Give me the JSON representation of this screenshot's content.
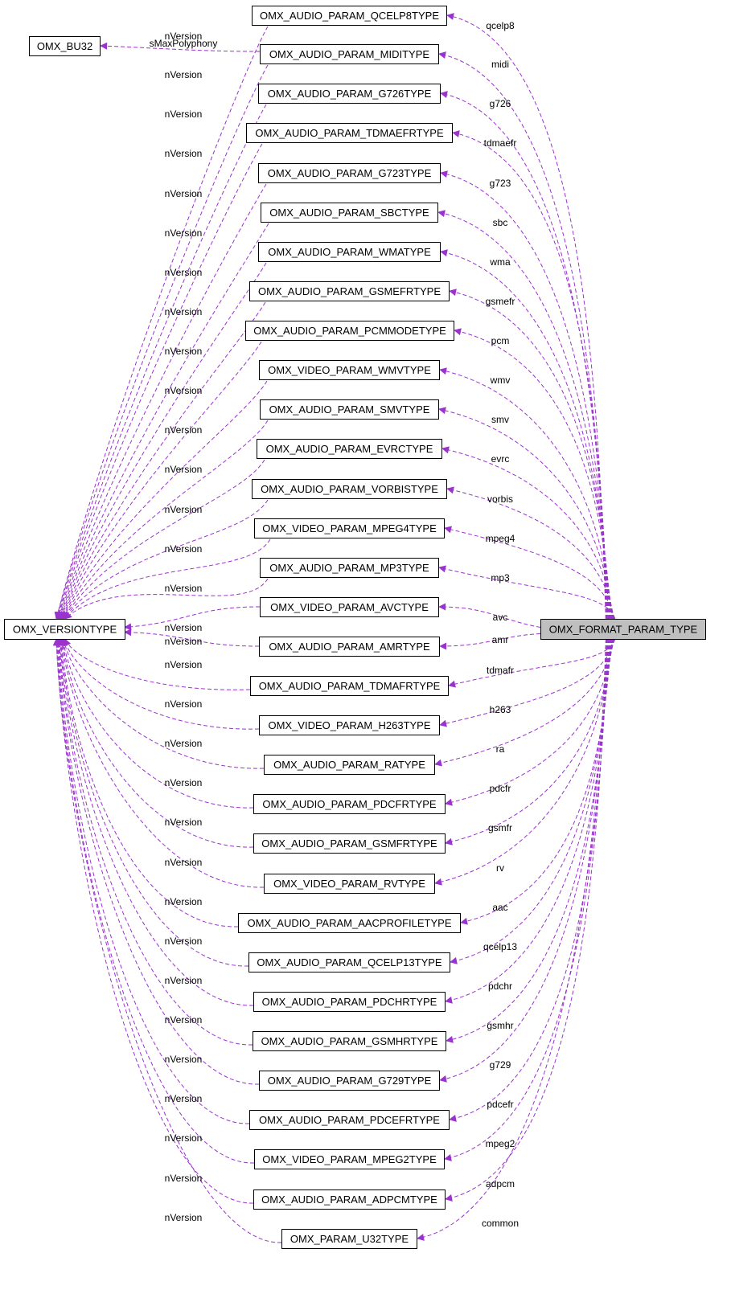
{
  "diagram": {
    "kind": "collaboration-graph",
    "edge_color": "#9a32cd",
    "highlight_fill": "#bfbfbf",
    "nodes": [
      {
        "id": "format",
        "label": "OMX_FORMAT_PARAM_TYPE",
        "highlight": true
      },
      {
        "id": "version",
        "label": "OMX_VERSIONTYPE"
      },
      {
        "id": "bu32",
        "label": "OMX_BU32"
      },
      {
        "id": "qcelp8",
        "label": "OMX_AUDIO_PARAM_QCELP8TYPE"
      },
      {
        "id": "midi",
        "label": "OMX_AUDIO_PARAM_MIDITYPE"
      },
      {
        "id": "g726",
        "label": "OMX_AUDIO_PARAM_G726TYPE"
      },
      {
        "id": "tdmaefr",
        "label": "OMX_AUDIO_PARAM_TDMAEFRTYPE"
      },
      {
        "id": "g723",
        "label": "OMX_AUDIO_PARAM_G723TYPE"
      },
      {
        "id": "sbc",
        "label": "OMX_AUDIO_PARAM_SBCTYPE"
      },
      {
        "id": "wma",
        "label": "OMX_AUDIO_PARAM_WMATYPE"
      },
      {
        "id": "gsmefr",
        "label": "OMX_AUDIO_PARAM_GSMEFRTYPE"
      },
      {
        "id": "pcm",
        "label": "OMX_AUDIO_PARAM_PCMMODETYPE"
      },
      {
        "id": "wmv",
        "label": "OMX_VIDEO_PARAM_WMVTYPE"
      },
      {
        "id": "smv",
        "label": "OMX_AUDIO_PARAM_SMVTYPE"
      },
      {
        "id": "evrc",
        "label": "OMX_AUDIO_PARAM_EVRCTYPE"
      },
      {
        "id": "vorbis",
        "label": "OMX_AUDIO_PARAM_VORBISTYPE"
      },
      {
        "id": "mpeg4",
        "label": "OMX_VIDEO_PARAM_MPEG4TYPE"
      },
      {
        "id": "mp3",
        "label": "OMX_AUDIO_PARAM_MP3TYPE"
      },
      {
        "id": "avc",
        "label": "OMX_VIDEO_PARAM_AVCTYPE"
      },
      {
        "id": "amr",
        "label": "OMX_AUDIO_PARAM_AMRTYPE"
      },
      {
        "id": "tdmafr",
        "label": "OMX_AUDIO_PARAM_TDMAFRTYPE"
      },
      {
        "id": "h263",
        "label": "OMX_VIDEO_PARAM_H263TYPE"
      },
      {
        "id": "ra",
        "label": "OMX_AUDIO_PARAM_RATYPE"
      },
      {
        "id": "pdcfr",
        "label": "OMX_AUDIO_PARAM_PDCFRTYPE"
      },
      {
        "id": "gsmfr",
        "label": "OMX_AUDIO_PARAM_GSMFRTYPE"
      },
      {
        "id": "rv",
        "label": "OMX_VIDEO_PARAM_RVTYPE"
      },
      {
        "id": "aac",
        "label": "OMX_AUDIO_PARAM_AACPROFILETYPE"
      },
      {
        "id": "qcelp13",
        "label": "OMX_AUDIO_PARAM_QCELP13TYPE"
      },
      {
        "id": "pdchr",
        "label": "OMX_AUDIO_PARAM_PDCHRTYPE"
      },
      {
        "id": "gsmhr",
        "label": "OMX_AUDIO_PARAM_GSMHRTYPE"
      },
      {
        "id": "g729",
        "label": "OMX_AUDIO_PARAM_G729TYPE"
      },
      {
        "id": "pdcefr",
        "label": "OMX_AUDIO_PARAM_PDCEFRTYPE"
      },
      {
        "id": "mpeg2",
        "label": "OMX_VIDEO_PARAM_MPEG2TYPE"
      },
      {
        "id": "adpcm",
        "label": "OMX_AUDIO_PARAM_ADPCMTYPE"
      },
      {
        "id": "u32",
        "label": "OMX_PARAM_U32TYPE"
      }
    ],
    "member_edges": [
      {
        "to": "qcelp8",
        "label": "qcelp8"
      },
      {
        "to": "midi",
        "label": "midi"
      },
      {
        "to": "g726",
        "label": "g726"
      },
      {
        "to": "tdmaefr",
        "label": "tdmaefr"
      },
      {
        "to": "g723",
        "label": "g723"
      },
      {
        "to": "sbc",
        "label": "sbc"
      },
      {
        "to": "wma",
        "label": "wma"
      },
      {
        "to": "gsmefr",
        "label": "gsmefr"
      },
      {
        "to": "pcm",
        "label": "pcm"
      },
      {
        "to": "wmv",
        "label": "wmv"
      },
      {
        "to": "smv",
        "label": "smv"
      },
      {
        "to": "evrc",
        "label": "evrc"
      },
      {
        "to": "vorbis",
        "label": "vorbis"
      },
      {
        "to": "mpeg4",
        "label": "mpeg4"
      },
      {
        "to": "mp3",
        "label": "mp3"
      },
      {
        "to": "avc",
        "label": "avc"
      },
      {
        "to": "amr",
        "label": "amr"
      },
      {
        "to": "tdmafr",
        "label": "tdmafr"
      },
      {
        "to": "h263",
        "label": "h263"
      },
      {
        "to": "ra",
        "label": "ra"
      },
      {
        "to": "pdcfr",
        "label": "pdcfr"
      },
      {
        "to": "gsmfr",
        "label": "gsmfr"
      },
      {
        "to": "rv",
        "label": "rv"
      },
      {
        "to": "aac",
        "label": "aac"
      },
      {
        "to": "qcelp13",
        "label": "qcelp13"
      },
      {
        "to": "pdchr",
        "label": "pdchr"
      },
      {
        "to": "gsmhr",
        "label": "gsmhr"
      },
      {
        "to": "g729",
        "label": "g729"
      },
      {
        "to": "pdcefr",
        "label": "pdcefr"
      },
      {
        "to": "mpeg2",
        "label": "mpeg2"
      },
      {
        "to": "adpcm",
        "label": "adpcm"
      },
      {
        "to": "u32",
        "label": "common"
      }
    ],
    "version_edge_label": "nVersion",
    "bu32_edge": {
      "from": "midi",
      "to": "bu32",
      "label": "sMaxPolyphony"
    }
  }
}
